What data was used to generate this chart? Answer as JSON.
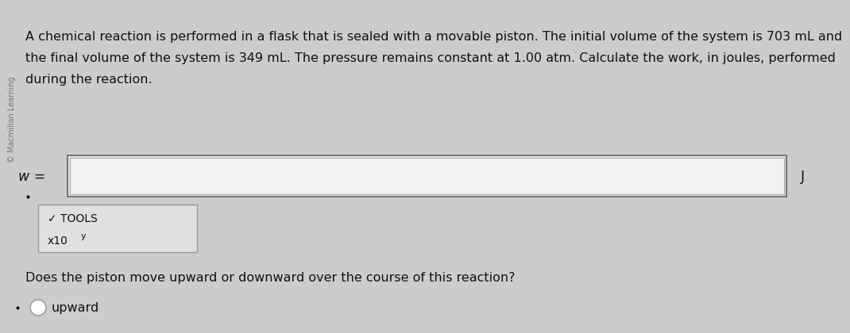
{
  "background_color": "#cccccc",
  "text_line1": "A chemical reaction is performed in a flask that is sealed with a movable piston. The initial volume of the system is 703 mL and",
  "text_line2": "the final volume of the system is 349 mL. The pressure remains constant at 1.00 atm. Calculate the work, in joules, performed",
  "text_line3": "during the reaction.",
  "watermark_text": "© Macmillan Learning",
  "w_label": "w =",
  "j_label": "J",
  "tools_label": "✓ TOOLS",
  "x10y_label": "x10",
  "x10y_sup": "y",
  "question_text": "Does the piston move upward or downward over the course of this reaction?",
  "answer_text": "upward",
  "font_size_body": 11.5,
  "font_size_small": 10,
  "font_size_watermark": 7,
  "input_box_facecolor": "#e8e8e8",
  "input_box_inner_color": "#f2f2f2",
  "tools_box_color": "#e0e0e0",
  "border_color": "#999999",
  "border_color_dark": "#777777",
  "text_color": "#111111",
  "watermark_color": "#777777"
}
